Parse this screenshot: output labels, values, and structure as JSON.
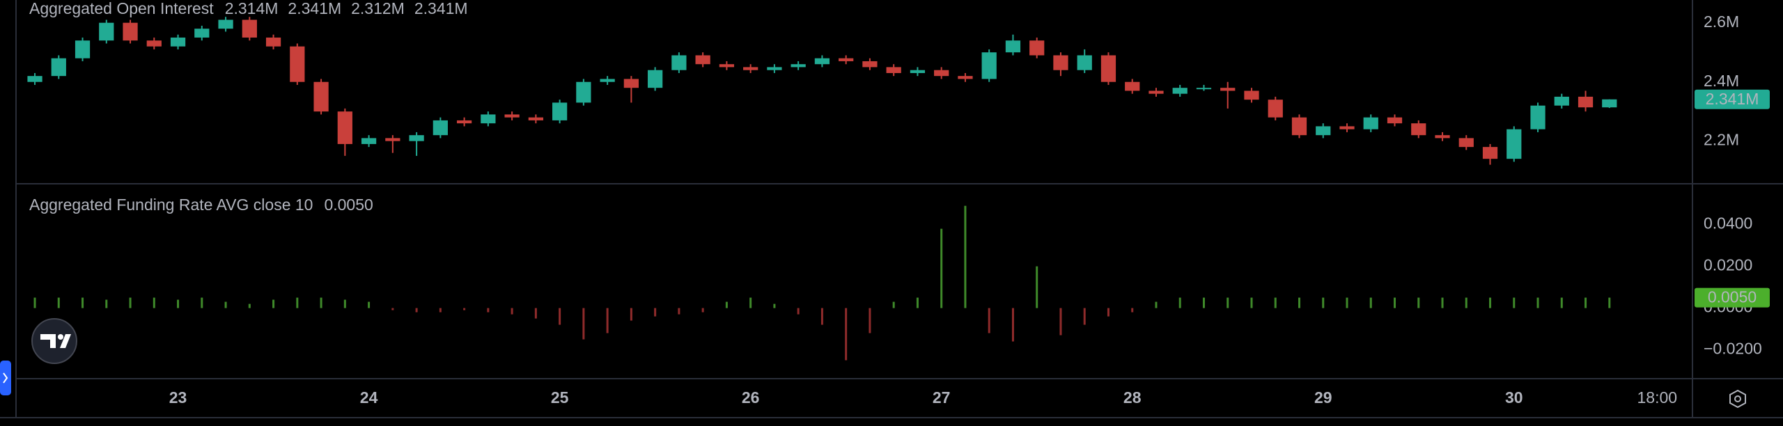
{
  "chart_data": [
    {
      "type": "candlestick",
      "title": "Aggregated Open Interest",
      "ohlc_labels": [
        "2.314M",
        "2.341M",
        "2.312M",
        "2.341M"
      ],
      "up_color": "#22ab94",
      "down_color": "#c9403b",
      "xlim": [
        22.155,
        30.935
      ],
      "ylim": [
        2.058,
        2.677
      ],
      "yticks": [
        {
          "value": 2.2,
          "label": "2.2M"
        },
        {
          "value": 2.4,
          "label": "2.4M"
        },
        {
          "value": 2.6,
          "label": "2.6M"
        }
      ],
      "x": [
        22.25,
        22.375,
        22.5,
        22.625,
        22.75,
        22.875,
        23,
        23.125,
        23.25,
        23.375,
        23.5,
        23.625,
        23.75,
        23.875,
        24,
        24.125,
        24.25,
        24.375,
        24.5,
        24.625,
        24.75,
        24.875,
        25,
        25.125,
        25.25,
        25.375,
        25.5,
        25.625,
        25.75,
        25.875,
        26,
        26.125,
        26.25,
        26.375,
        26.5,
        26.625,
        26.75,
        26.875,
        27,
        27.125,
        27.25,
        27.375,
        27.5,
        27.625,
        27.75,
        27.875,
        28,
        28.125,
        28.25,
        28.375,
        28.5,
        28.625,
        28.75,
        28.875,
        29,
        29.125,
        29.25,
        29.375,
        29.5,
        29.625,
        29.75,
        29.875,
        30,
        30.125,
        30.25,
        30.375,
        30.5
      ],
      "open": [
        2.4,
        2.42,
        2.48,
        2.54,
        2.6,
        2.54,
        2.52,
        2.55,
        2.58,
        2.61,
        2.55,
        2.52,
        2.4,
        2.3,
        2.19,
        2.21,
        2.2,
        2.22,
        2.27,
        2.26,
        2.29,
        2.28,
        2.27,
        2.33,
        2.4,
        2.41,
        2.38,
        2.44,
        2.49,
        2.46,
        2.45,
        2.44,
        2.45,
        2.46,
        2.48,
        2.47,
        2.45,
        2.43,
        2.44,
        2.42,
        2.41,
        2.5,
        2.54,
        2.49,
        2.44,
        2.49,
        2.4,
        2.37,
        2.36,
        2.38,
        2.38,
        2.37,
        2.34,
        2.28,
        2.22,
        2.25,
        2.24,
        2.28,
        2.26,
        2.22,
        2.21,
        2.18,
        2.14,
        2.24,
        2.32,
        2.35,
        2.314
      ],
      "high": [
        2.43,
        2.49,
        2.55,
        2.61,
        2.61,
        2.55,
        2.56,
        2.59,
        2.62,
        2.62,
        2.56,
        2.53,
        2.41,
        2.31,
        2.22,
        2.22,
        2.23,
        2.28,
        2.28,
        2.3,
        2.3,
        2.29,
        2.34,
        2.41,
        2.42,
        2.42,
        2.45,
        2.5,
        2.5,
        2.47,
        2.46,
        2.46,
        2.47,
        2.49,
        2.49,
        2.48,
        2.46,
        2.45,
        2.45,
        2.43,
        2.51,
        2.56,
        2.55,
        2.5,
        2.51,
        2.5,
        2.41,
        2.38,
        2.39,
        2.39,
        2.4,
        2.38,
        2.35,
        2.29,
        2.26,
        2.26,
        2.29,
        2.29,
        2.27,
        2.23,
        2.22,
        2.19,
        2.25,
        2.33,
        2.36,
        2.37,
        2.341
      ],
      "low": [
        2.39,
        2.41,
        2.47,
        2.53,
        2.53,
        2.51,
        2.51,
        2.54,
        2.57,
        2.54,
        2.51,
        2.39,
        2.29,
        2.15,
        2.18,
        2.16,
        2.15,
        2.21,
        2.25,
        2.25,
        2.27,
        2.26,
        2.26,
        2.32,
        2.39,
        2.33,
        2.37,
        2.43,
        2.45,
        2.44,
        2.43,
        2.43,
        2.44,
        2.45,
        2.46,
        2.44,
        2.42,
        2.42,
        2.41,
        2.4,
        2.4,
        2.49,
        2.48,
        2.42,
        2.43,
        2.39,
        2.36,
        2.35,
        2.35,
        2.37,
        2.31,
        2.33,
        2.27,
        2.21,
        2.21,
        2.23,
        2.23,
        2.25,
        2.21,
        2.2,
        2.17,
        2.12,
        2.13,
        2.23,
        2.31,
        2.3,
        2.312
      ],
      "close": [
        2.42,
        2.48,
        2.54,
        2.6,
        2.54,
        2.52,
        2.55,
        2.58,
        2.61,
        2.55,
        2.52,
        2.4,
        2.3,
        2.19,
        2.21,
        2.2,
        2.22,
        2.27,
        2.26,
        2.29,
        2.28,
        2.27,
        2.33,
        2.4,
        2.41,
        2.38,
        2.44,
        2.49,
        2.46,
        2.45,
        2.44,
        2.45,
        2.46,
        2.48,
        2.47,
        2.45,
        2.43,
        2.44,
        2.42,
        2.41,
        2.5,
        2.54,
        2.49,
        2.44,
        2.49,
        2.4,
        2.37,
        2.36,
        2.38,
        2.38,
        2.37,
        2.34,
        2.28,
        2.22,
        2.25,
        2.24,
        2.28,
        2.26,
        2.22,
        2.21,
        2.18,
        2.14,
        2.24,
        2.32,
        2.35,
        2.314,
        2.341
      ]
    },
    {
      "type": "bar",
      "title": "Aggregated Funding Rate AVG close 10",
      "last_value_label": "0.0050",
      "positive_color": "#3f8a2a",
      "negative_color": "#8f2b2b",
      "label_color": "#4caf2c",
      "xlim": [
        22.155,
        30.935
      ],
      "xticks": [
        23,
        24,
        25,
        26,
        27,
        28,
        29,
        30,
        {
          "value": 30.75,
          "label": "18:00"
        }
      ],
      "ylim": [
        -0.0335,
        0.0589
      ],
      "yticks": [
        {
          "value": -0.02,
          "label": "−0.0200"
        },
        {
          "value": 0,
          "label": "0.0000"
        },
        {
          "value": 0.02,
          "label": "0.0200"
        },
        {
          "value": 0.04,
          "label": "0.0400"
        }
      ],
      "x": [
        22.25,
        22.375,
        22.5,
        22.625,
        22.75,
        22.875,
        23,
        23.125,
        23.25,
        23.375,
        23.5,
        23.625,
        23.75,
        23.875,
        24,
        24.125,
        24.25,
        24.375,
        24.5,
        24.625,
        24.75,
        24.875,
        25,
        25.125,
        25.25,
        25.375,
        25.5,
        25.625,
        25.75,
        25.875,
        26,
        26.125,
        26.25,
        26.375,
        26.5,
        26.625,
        26.75,
        26.875,
        27,
        27.125,
        27.25,
        27.375,
        27.5,
        27.625,
        27.75,
        27.875,
        28,
        28.125,
        28.25,
        28.375,
        28.5,
        28.625,
        28.75,
        28.875,
        29,
        29.125,
        29.25,
        29.375,
        29.5,
        29.625,
        29.75,
        29.875,
        30,
        30.125,
        30.25,
        30.375,
        30.5
      ],
      "values": [
        0.005,
        0.005,
        0.005,
        0.004,
        0.005,
        0.005,
        0.004,
        0.005,
        0.003,
        0.002,
        0.004,
        0.005,
        0.005,
        0.004,
        0.003,
        -0.001,
        -0.002,
        -0.002,
        -0.001,
        -0.002,
        -0.003,
        -0.005,
        -0.008,
        -0.015,
        -0.012,
        -0.006,
        -0.004,
        -0.003,
        -0.002,
        0.003,
        0.005,
        0.002,
        -0.003,
        -0.008,
        -0.025,
        -0.012,
        0.003,
        0.005,
        0.038,
        0.049,
        -0.012,
        -0.016,
        0.02,
        -0.013,
        -0.008,
        -0.004,
        -0.002,
        0.003,
        0.005,
        0.005,
        0.005,
        0.005,
        0.005,
        0.005,
        0.005,
        0.005,
        0.005,
        0.005,
        0.005,
        0.005,
        0.005,
        0.005,
        0.005,
        0.005,
        0.005,
        0.005,
        0.005
      ]
    }
  ]
}
